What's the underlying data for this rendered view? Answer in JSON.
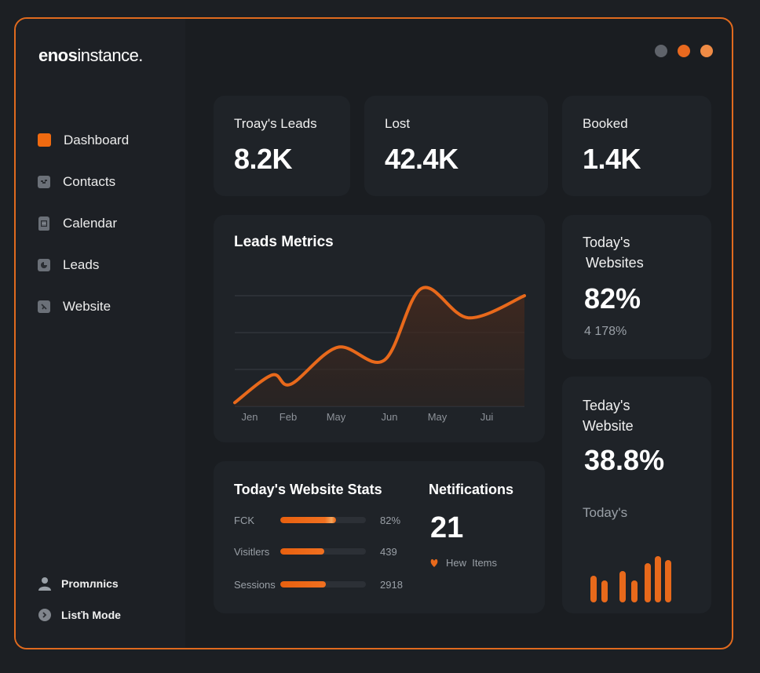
{
  "app": {
    "logo_bold": "enos",
    "logo_regular": "instance."
  },
  "window_controls": [
    {
      "name": "minimize",
      "color": "#5f636a"
    },
    {
      "name": "maximize",
      "color": "#e8691f"
    },
    {
      "name": "close",
      "color": "#ef8b45"
    }
  ],
  "sidebar": {
    "items": [
      {
        "label": "Dashboard",
        "icon": "dashboard-icon",
        "active": true
      },
      {
        "label": "Contacts",
        "icon": "contacts-icon",
        "active": false
      },
      {
        "label": "Calendar",
        "icon": "calendar-icon",
        "active": false
      },
      {
        "label": "Leads",
        "icon": "leads-icon",
        "active": false
      },
      {
        "label": "Website",
        "icon": "website-icon",
        "active": false
      }
    ],
    "bottom": [
      {
        "label": "Promлnics",
        "icon": "user-icon"
      },
      {
        "label": "Lisťh Mode",
        "icon": "mode-toggle-icon"
      }
    ]
  },
  "stats": [
    {
      "label": "Troay's Leads",
      "value": "8.2K"
    },
    {
      "label": "Lost",
      "value": "42.4K"
    },
    {
      "label": "Booked",
      "value": "1.4K"
    }
  ],
  "leads_metrics": {
    "title": "Leads Metrics"
  },
  "chart_data": {
    "type": "area",
    "title": "Leads Metrics",
    "xlabel": "",
    "ylabel": "",
    "x_tick_labels": [
      "Jen",
      "Feb",
      "May",
      "Jun",
      "May",
      "Jui"
    ],
    "series": [
      {
        "name": "Leads",
        "x": [
          0,
          0.2,
          0.3,
          0.55,
          0.8,
          1.0,
          1.25,
          1.55
        ],
        "values": [
          0.1,
          0.85,
          0.6,
          1.6,
          1.25,
          3.2,
          2.4,
          3.0
        ]
      }
    ],
    "ylim": [
      0,
      3.2
    ],
    "xlim": [
      0,
      1.55
    ],
    "gridlines": [
      0,
      1,
      2,
      3
    ],
    "grid": true,
    "line_color": "#e8691b",
    "fill_color": "#3a2620",
    "legend": "none"
  },
  "website_stats": {
    "title": "Today's Website Stats",
    "rows": [
      {
        "label": "FCK",
        "value": "82%",
        "fill": 0.65
      },
      {
        "label": "Visitlers",
        "value": "439",
        "fill": 0.51
      },
      {
        "label": "Sessions",
        "value": "2918",
        "fill": 0.53
      }
    ]
  },
  "notifications": {
    "title": "Netifications",
    "count": "21",
    "sub_label": "Hew  Items"
  },
  "websites_card": {
    "title_line1": "Today's",
    "title_line2": "Websites",
    "value": "82%",
    "sub": "4 178%"
  },
  "website_card": {
    "title_line1": "Teday's",
    "title_line2": "Website",
    "value": "38.8%",
    "sub": "Today's",
    "mini_bars": [
      34,
      28,
      40,
      28,
      50,
      59,
      54
    ]
  },
  "colors": {
    "accent": "#e8691b",
    "background": "#1a1d21",
    "card": "#1f2328"
  }
}
